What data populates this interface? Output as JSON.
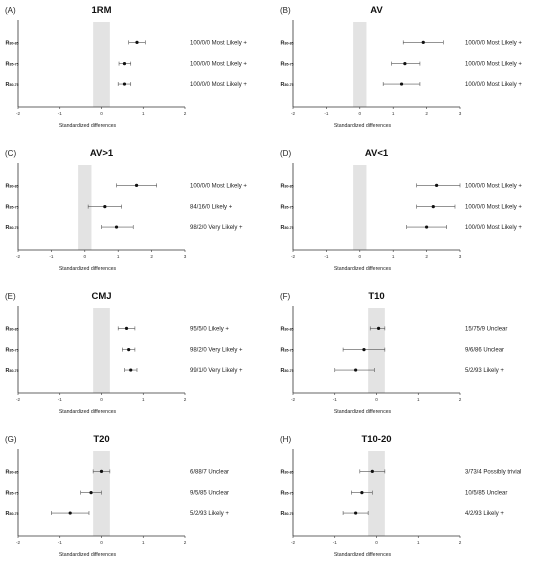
{
  "figure": {
    "row_labels": [
      "R",
      "R",
      "R"
    ],
    "row_subscripts": [
      "80-85",
      "85-75",
      "80-75"
    ]
  },
  "chart_data": [
    {
      "type": "forest",
      "panel_label": "(A)",
      "title": "1RM",
      "xlabel": "Standardized differences",
      "xlim": [
        -2,
        2
      ],
      "xticks": [
        -2,
        -1,
        0,
        1,
        2
      ],
      "trivial_band": [
        -0.2,
        0.2
      ],
      "rows": [
        {
          "estimate": 0.85,
          "ci_low": 0.65,
          "ci_high": 1.05,
          "annotation": "100/0/0 Most Likely +"
        },
        {
          "estimate": 0.55,
          "ci_low": 0.42,
          "ci_high": 0.7,
          "annotation": "100/0/0 Most Likely +"
        },
        {
          "estimate": 0.55,
          "ci_low": 0.4,
          "ci_high": 0.7,
          "annotation": "100/0/0 Most Likely +"
        }
      ]
    },
    {
      "type": "forest",
      "panel_label": "(B)",
      "title": "AV",
      "xlabel": "Standardized differences",
      "xlim": [
        -2,
        3
      ],
      "xticks": [
        -2,
        -1,
        0,
        1,
        2,
        3
      ],
      "trivial_band": [
        -0.2,
        0.2
      ],
      "rows": [
        {
          "estimate": 1.9,
          "ci_low": 1.3,
          "ci_high": 2.5,
          "annotation": "100/0/0 Most Likely +"
        },
        {
          "estimate": 1.35,
          "ci_low": 0.95,
          "ci_high": 1.8,
          "annotation": "100/0/0 Most Likely +"
        },
        {
          "estimate": 1.25,
          "ci_low": 0.7,
          "ci_high": 1.8,
          "annotation": "100/0/0 Most Likely +"
        }
      ]
    },
    {
      "type": "forest",
      "panel_label": "(C)",
      "title": "AV>1",
      "xlabel": "Standardized differences",
      "xlim": [
        -2,
        3
      ],
      "xticks": [
        -2,
        -1,
        0,
        1,
        2,
        3
      ],
      "trivial_band": [
        -0.2,
        0.2
      ],
      "rows": [
        {
          "estimate": 1.55,
          "ci_low": 0.95,
          "ci_high": 2.15,
          "annotation": "100/0/0 Most Likely +"
        },
        {
          "estimate": 0.6,
          "ci_low": 0.1,
          "ci_high": 1.1,
          "annotation": "84/16/0 Likely +"
        },
        {
          "estimate": 0.95,
          "ci_low": 0.5,
          "ci_high": 1.45,
          "annotation": "98/2/0 Very Likely +"
        }
      ]
    },
    {
      "type": "forest",
      "panel_label": "(D)",
      "title": "AV<1",
      "xlabel": "Standardized differences",
      "xlim": [
        -2,
        3
      ],
      "xticks": [
        -2,
        -1,
        0,
        1,
        2,
        3
      ],
      "trivial_band": [
        -0.2,
        0.2
      ],
      "rows": [
        {
          "estimate": 2.3,
          "ci_low": 1.7,
          "ci_high": 3.0,
          "annotation": "100/0/0 Most Likely +"
        },
        {
          "estimate": 2.2,
          "ci_low": 1.7,
          "ci_high": 2.85,
          "annotation": "100/0/0 Most Likely +"
        },
        {
          "estimate": 2.0,
          "ci_low": 1.4,
          "ci_high": 2.6,
          "annotation": "100/0/0 Most Likely +"
        }
      ]
    },
    {
      "type": "forest",
      "panel_label": "(E)",
      "title": "CMJ",
      "xlabel": "Standardized differences",
      "xlim": [
        -2,
        2
      ],
      "xticks": [
        -2,
        -1,
        0,
        1,
        2
      ],
      "trivial_band": [
        -0.2,
        0.2
      ],
      "rows": [
        {
          "estimate": 0.6,
          "ci_low": 0.4,
          "ci_high": 0.8,
          "annotation": "95/5/0 Likely +"
        },
        {
          "estimate": 0.65,
          "ci_low": 0.5,
          "ci_high": 0.8,
          "annotation": "98/2/0 Very Likely +"
        },
        {
          "estimate": 0.7,
          "ci_low": 0.55,
          "ci_high": 0.85,
          "annotation": "99/1/0 Very Likely +"
        }
      ]
    },
    {
      "type": "forest",
      "panel_label": "(F)",
      "title": "T10",
      "xlabel": "Standardized differences",
      "xlim": [
        -2,
        2
      ],
      "xticks": [
        -2,
        -1,
        0,
        1,
        2
      ],
      "trivial_band": [
        -0.2,
        0.2
      ],
      "rows": [
        {
          "estimate": 0.05,
          "ci_low": -0.15,
          "ci_high": 0.2,
          "annotation": "15/75/9 Unclear"
        },
        {
          "estimate": -0.3,
          "ci_low": -0.8,
          "ci_high": 0.2,
          "annotation": "9/6/86 Unclear"
        },
        {
          "estimate": -0.5,
          "ci_low": -1.0,
          "ci_high": -0.05,
          "annotation": "5/2/93 Likely +"
        }
      ]
    },
    {
      "type": "forest",
      "panel_label": "(G)",
      "title": "T20",
      "xlabel": "Standardized differences",
      "xlim": [
        -2,
        2
      ],
      "xticks": [
        -2,
        -1,
        0,
        1,
        2
      ],
      "trivial_band": [
        -0.2,
        0.2
      ],
      "rows": [
        {
          "estimate": 0.0,
          "ci_low": -0.2,
          "ci_high": 0.2,
          "annotation": "6/88/7 Unclear"
        },
        {
          "estimate": -0.25,
          "ci_low": -0.5,
          "ci_high": 0.0,
          "annotation": "9/5/85 Unclear"
        },
        {
          "estimate": -0.75,
          "ci_low": -1.2,
          "ci_high": -0.3,
          "annotation": "5/2/93 Likely +"
        }
      ]
    },
    {
      "type": "forest",
      "panel_label": "(H)",
      "title": "T10-20",
      "xlabel": "Standardized differences",
      "xlim": [
        -2,
        2
      ],
      "xticks": [
        -2,
        -1,
        0,
        1,
        2
      ],
      "trivial_band": [
        -0.2,
        0.2
      ],
      "rows": [
        {
          "estimate": -0.1,
          "ci_low": -0.4,
          "ci_high": 0.2,
          "annotation": "3/73/4 Possibly trivial"
        },
        {
          "estimate": -0.35,
          "ci_low": -0.6,
          "ci_high": -0.1,
          "annotation": "10/5/85 Unclear"
        },
        {
          "estimate": -0.5,
          "ci_low": -0.8,
          "ci_high": -0.2,
          "annotation": "4/2/93 Likely +"
        }
      ]
    }
  ]
}
